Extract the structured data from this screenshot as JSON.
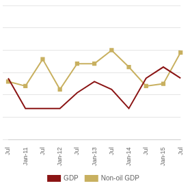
{
  "chart_data": {
    "type": "line",
    "categories": [
      "Jul",
      "Jan-11",
      "Jul",
      "Jan-12",
      "Jul",
      "Jan-13",
      "Jul",
      "Jan-14",
      "Jul",
      "Jan-15",
      "Jul"
    ],
    "series": [
      {
        "name": "GDP",
        "color": "#8B1515",
        "marker": "none",
        "values": [
          5.5,
          2.8,
          2.8,
          2.8,
          4.2,
          5.2,
          4.5,
          2.8,
          5.5,
          6.5,
          5.5
        ]
      },
      {
        "name": "Non-oil GDP",
        "color": "#C8B060",
        "marker": "square",
        "values": [
          5.2,
          4.8,
          7.2,
          4.5,
          6.8,
          6.8,
          8.0,
          6.5,
          4.8,
          5.0,
          7.8
        ]
      }
    ],
    "ylim": [
      0,
      12
    ],
    "yticks": [
      0,
      2,
      4,
      6,
      8,
      10,
      12
    ],
    "grid": "y",
    "tick_labels": "x",
    "legend": "bottom"
  }
}
